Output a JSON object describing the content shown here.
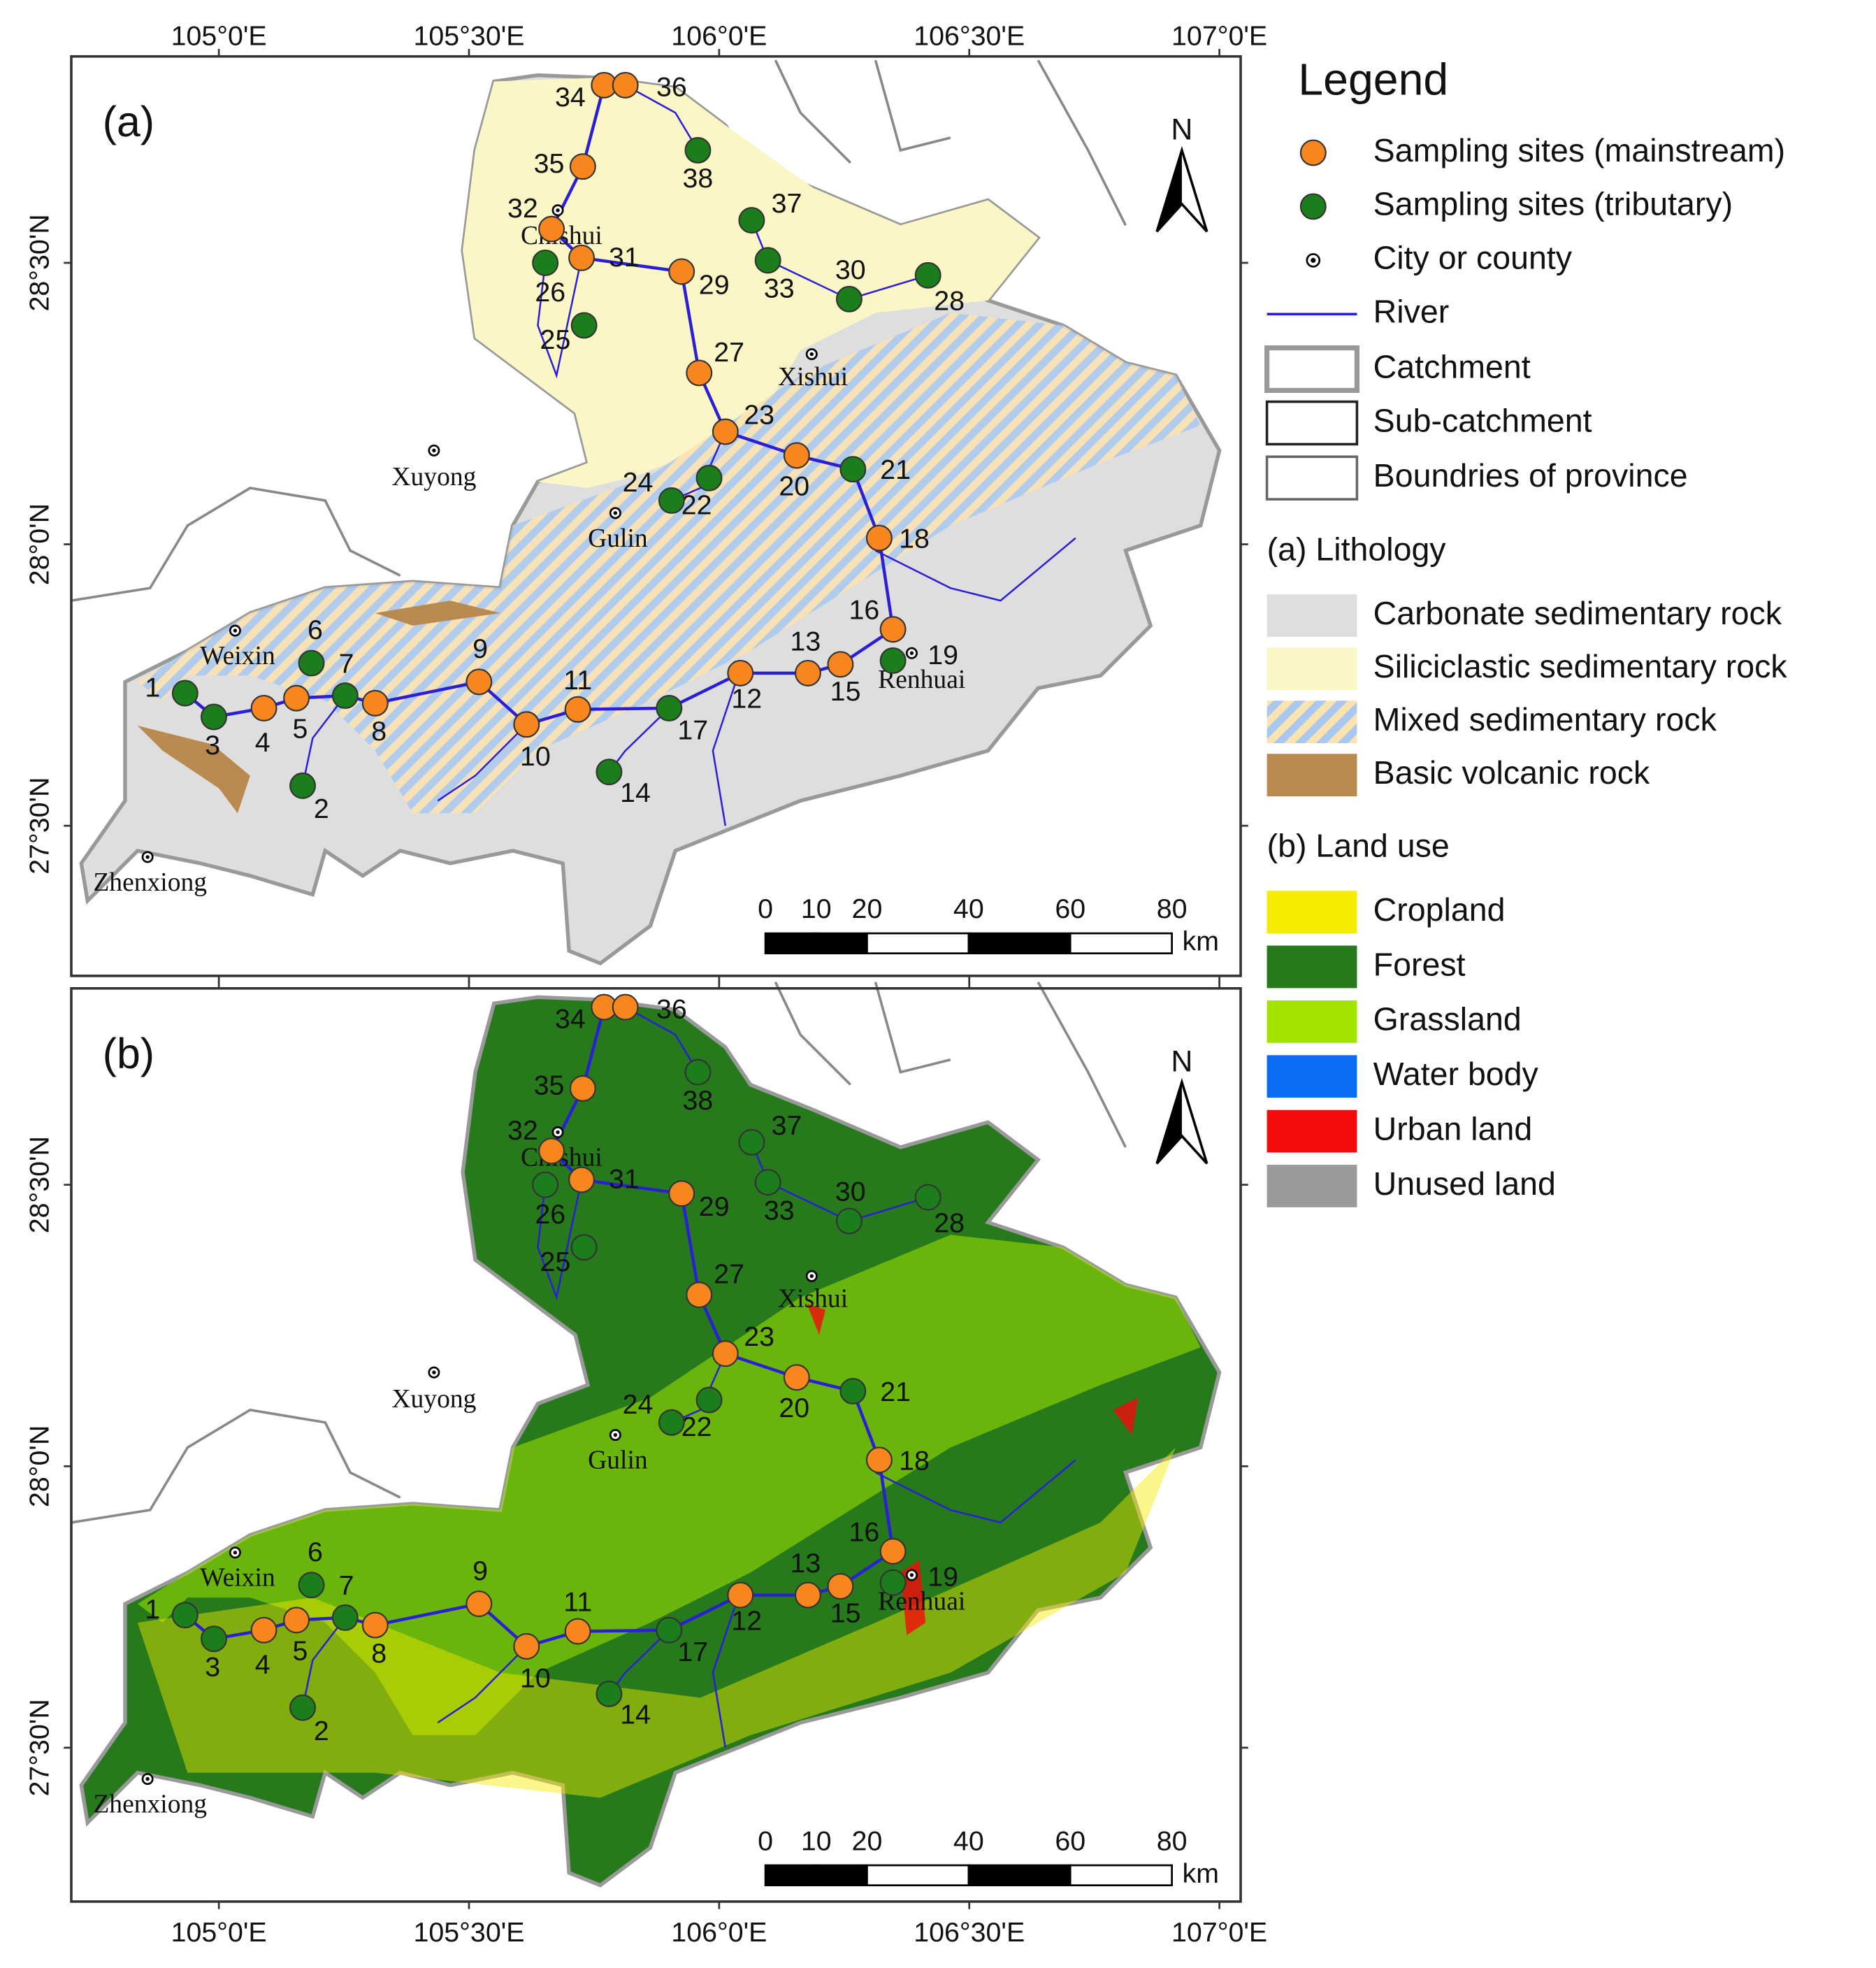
{
  "legend": {
    "title": "Legend",
    "items": [
      {
        "label": "Sampling sites (mainstream)",
        "color": "#f7861f"
      },
      {
        "label": "Sampling sites (tributary)",
        "color": "#1b7d1b"
      },
      {
        "label": "City or county"
      },
      {
        "label": "River",
        "color": "#2a1fd6"
      },
      {
        "label": "Catchment"
      },
      {
        "label": "Sub-catchment"
      },
      {
        "label": "Boundries of province"
      }
    ],
    "lithology_title": "(a) Lithology",
    "lithology": [
      {
        "label": "Carbonate sedimentary rock",
        "color": "#dedede"
      },
      {
        "label": "Siliciclastic sedimentary rock",
        "color": "#fbf6c6"
      },
      {
        "label": "Mixed sedimentary rock",
        "color": "#a9c8ef"
      },
      {
        "label": "Basic volcanic rock",
        "color": "#b88a50"
      }
    ],
    "land_use_title": "(b) Land use",
    "land_use": [
      {
        "label": "Cropland",
        "color": "#f5ec00"
      },
      {
        "label": "Forest",
        "color": "#267a1c"
      },
      {
        "label": "Grassland",
        "color": "#a3e500"
      },
      {
        "label": "Water body",
        "color": "#0a6cf5"
      },
      {
        "label": "Urban land",
        "color": "#f50a0a"
      },
      {
        "label": "Unused land",
        "color": "#9a9a9a"
      }
    ]
  },
  "panels": [
    {
      "label": "(a)",
      "theme": "lithology"
    },
    {
      "label": "(b)",
      "theme": "land_use"
    }
  ],
  "longitude_ticks": [
    {
      "value": 105,
      "label": "105°0'E"
    },
    {
      "value": 105.5,
      "label": "105°30'E"
    },
    {
      "value": 106,
      "label": "106°0'E"
    },
    {
      "value": 106.5,
      "label": "106°30'E"
    },
    {
      "value": 107,
      "label": "107°0'E"
    }
  ],
  "latitude_ticks": [
    {
      "value": 28.5,
      "label": "28°30'N"
    },
    {
      "value": 28,
      "label": "28°0'N"
    },
    {
      "value": 27.5,
      "label": "27°30'N"
    }
  ],
  "north": "N",
  "scale_bar": {
    "ticks": [
      0,
      10,
      20,
      40,
      60,
      80
    ],
    "unit": "km"
  },
  "cities": [
    "Weixin",
    "Chishui",
    "Xishui",
    "Xuyong",
    "Gulin",
    "Renhuai",
    "Zhenxiong"
  ],
  "sites": [
    {
      "id": "1",
      "type": "tributary"
    },
    {
      "id": "2",
      "type": "tributary"
    },
    {
      "id": "3",
      "type": "tributary"
    },
    {
      "id": "4",
      "type": "mainstream"
    },
    {
      "id": "5",
      "type": "mainstream"
    },
    {
      "id": "6",
      "type": "tributary"
    },
    {
      "id": "7",
      "type": "tributary"
    },
    {
      "id": "8",
      "type": "mainstream"
    },
    {
      "id": "9",
      "type": "mainstream"
    },
    {
      "id": "10",
      "type": "mainstream"
    },
    {
      "id": "11",
      "type": "mainstream"
    },
    {
      "id": "12",
      "type": "mainstream"
    },
    {
      "id": "13",
      "type": "mainstream"
    },
    {
      "id": "14",
      "type": "tributary"
    },
    {
      "id": "15",
      "type": "mainstream"
    },
    {
      "id": "16",
      "type": "mainstream"
    },
    {
      "id": "17",
      "type": "tributary"
    },
    {
      "id": "18",
      "type": "mainstream"
    },
    {
      "id": "19",
      "type": "tributary"
    },
    {
      "id": "20",
      "type": "mainstream"
    },
    {
      "id": "21",
      "type": "tributary"
    },
    {
      "id": "22",
      "type": "tributary"
    },
    {
      "id": "23",
      "type": "mainstream"
    },
    {
      "id": "24",
      "type": "tributary"
    },
    {
      "id": "25",
      "type": "tributary"
    },
    {
      "id": "26",
      "type": "tributary"
    },
    {
      "id": "27",
      "type": "mainstream"
    },
    {
      "id": "28",
      "type": "tributary"
    },
    {
      "id": "29",
      "type": "mainstream"
    },
    {
      "id": "30",
      "type": "tributary"
    },
    {
      "id": "31",
      "type": "mainstream"
    },
    {
      "id": "32",
      "type": "mainstream"
    },
    {
      "id": "33",
      "type": "tributary"
    },
    {
      "id": "34",
      "type": "mainstream"
    },
    {
      "id": "35",
      "type": "mainstream"
    },
    {
      "id": "36",
      "type": "mainstream"
    },
    {
      "id": "37",
      "type": "tributary"
    },
    {
      "id": "38",
      "type": "tributary"
    }
  ]
}
